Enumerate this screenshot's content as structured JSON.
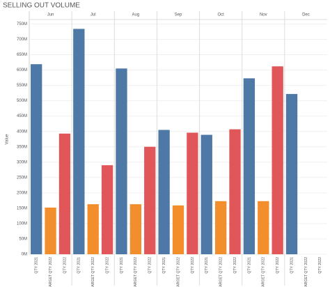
{
  "chart_data": {
    "type": "bar",
    "title": "SELLING OUT VOLUME",
    "y_label": "Value",
    "categories": [
      "Jun",
      "Jul",
      "Aug",
      "Sep",
      "Oct",
      "Nov",
      "Dec"
    ],
    "series": [
      {
        "name": "QTY 2021",
        "color": "#4e79a7",
        "values": [
          619,
          734,
          605,
          405,
          389,
          573,
          522
        ]
      },
      {
        "name": "TARGET QTY 2022",
        "color": "#f28e2b",
        "values": [
          152,
          163,
          163,
          159,
          173,
          173,
          null
        ]
      },
      {
        "name": "QTY 2022",
        "color": "#e15759",
        "values": [
          393,
          290,
          350,
          396,
          407,
          612,
          null
        ]
      }
    ],
    "ylim": [
      0,
      760
    ],
    "yticks": [
      {
        "value": 0,
        "label": "0M"
      },
      {
        "value": 50,
        "label": "50M"
      },
      {
        "value": 100,
        "label": "100M"
      },
      {
        "value": 150,
        "label": "150M"
      },
      {
        "value": 200,
        "label": "200M"
      },
      {
        "value": 250,
        "label": "250M"
      },
      {
        "value": 300,
        "label": "300M"
      },
      {
        "value": 350,
        "label": "350M"
      },
      {
        "value": 400,
        "label": "400M"
      },
      {
        "value": 450,
        "label": "450M"
      },
      {
        "value": 500,
        "label": "500M"
      },
      {
        "value": 550,
        "label": "550M"
      },
      {
        "value": 600,
        "label": "600M"
      },
      {
        "value": 650,
        "label": "650M"
      },
      {
        "value": 700,
        "label": "700M"
      },
      {
        "value": 750,
        "label": "750M"
      }
    ],
    "grid": true
  }
}
